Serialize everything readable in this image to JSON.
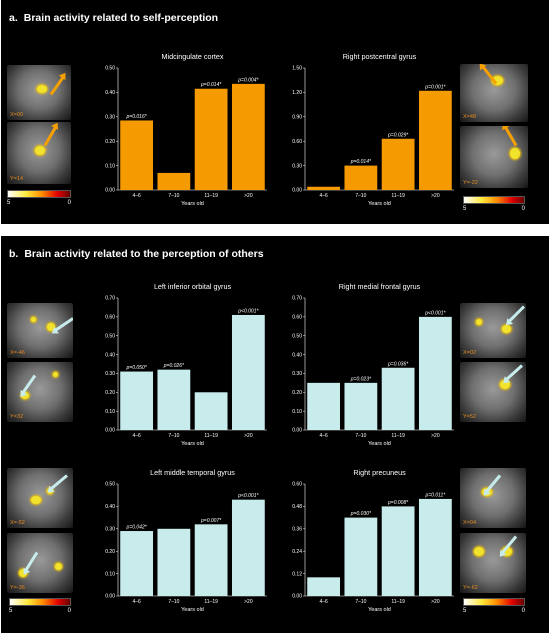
{
  "section_a": {
    "letter": "a.",
    "title": "Brain activity related to self-perception"
  },
  "section_b": {
    "letter": "b.",
    "title": "Brain activity related to the perception of others"
  },
  "colorscale": {
    "min": "5",
    "max": "0"
  },
  "colors": {
    "self": "#f59a00",
    "others": "#c8ecec",
    "background": "#000000"
  },
  "brains": {
    "a_left_sag": "X=00",
    "a_left_cor": "Y=14",
    "a_right_sag": "X=48",
    "a_right_cor": "Y=-22",
    "b_l1_sag": "X=-46",
    "b_l1_cor": "Y=32",
    "b_r1_sag": "X=02",
    "b_r1_cor": "Y=52",
    "b_l2_sag": "X=-52",
    "b_l2_cor": "Y=-36",
    "b_r2_sag": "X=04",
    "b_r2_cor": "Y=-62"
  },
  "chart_data": [
    {
      "type": "bar",
      "title": "Midcingulate cortex",
      "xlabel": "Years old",
      "categories": [
        "4–6",
        "7–10",
        "11–19",
        ">20"
      ],
      "values": [
        0.285,
        0.07,
        0.415,
        0.435
      ],
      "p_labels": [
        "p=0.016*",
        "",
        "p=0.014*",
        "p=0.004*"
      ],
      "ylim": [
        0,
        0.5
      ],
      "yticks": [
        "0.00",
        "0.10",
        "0.20",
        "0.30",
        "0.40",
        "0.50"
      ],
      "color": "#f59a00"
    },
    {
      "type": "bar",
      "title": "Right postcentral gyrus",
      "xlabel": "Years old",
      "categories": [
        "4–6",
        "7–10",
        "11–19",
        ">20"
      ],
      "values": [
        0.04,
        0.3,
        0.63,
        1.22
      ],
      "p_labels": [
        "",
        "p=0.014*",
        "p=0.029*",
        "p=0.001*"
      ],
      "ylim": [
        0,
        1.5
      ],
      "yticks": [
        "0.00",
        "0.30",
        "0.60",
        "0.90",
        "1.20",
        "1.50"
      ],
      "color": "#f59a00"
    },
    {
      "type": "bar",
      "title": "Left inferior orbital gyrus",
      "xlabel": "Years old",
      "categories": [
        "4–6",
        "7–10",
        "11–19",
        ">20"
      ],
      "values": [
        0.31,
        0.32,
        0.2,
        0.61
      ],
      "p_labels": [
        "p=0.050*",
        "p=0.026*",
        "",
        "p<0.001*"
      ],
      "ylim": [
        0,
        0.7
      ],
      "yticks": [
        "0.00",
        "0.10",
        "0.20",
        "0.30",
        "0.40",
        "0.50",
        "0.60",
        "0.70"
      ],
      "color": "#c8ecec"
    },
    {
      "type": "bar",
      "title": "Right medial frontal gyrus",
      "xlabel": "Years old",
      "categories": [
        "4–6",
        "7–10",
        "11–19",
        ">20"
      ],
      "values": [
        0.25,
        0.25,
        0.33,
        0.6
      ],
      "p_labels": [
        "",
        "p=0.023*",
        "p=0.036*",
        "p<0.001*"
      ],
      "ylim": [
        0,
        0.7
      ],
      "yticks": [
        "0.00",
        "0.10",
        "0.20",
        "0.30",
        "0.40",
        "0.50",
        "0.60",
        "0.70"
      ],
      "color": "#c8ecec"
    },
    {
      "type": "bar",
      "title": "Left middle temporal gyrus",
      "xlabel": "Years old",
      "categories": [
        "4–6",
        "7–10",
        "11–19",
        ">20"
      ],
      "values": [
        0.29,
        0.3,
        0.32,
        0.43
      ],
      "p_labels": [
        "p=0.042*",
        "",
        "p=0.007*",
        "p<0.001*"
      ],
      "ylim": [
        0,
        0.5
      ],
      "yticks": [
        "0.00",
        "0.10",
        "0.20",
        "0.30",
        "0.40",
        "0.50"
      ],
      "color": "#c8ecec"
    },
    {
      "type": "bar",
      "title": "Right precuneus",
      "xlabel": "Years old",
      "categories": [
        "4–6",
        "7–10",
        "11–19",
        ">20"
      ],
      "values": [
        0.1,
        0.42,
        0.48,
        0.52
      ],
      "p_labels": [
        "",
        "p=0.030*",
        "p=0.008*",
        "p=0.011*"
      ],
      "ylim": [
        0,
        0.6
      ],
      "yticks": [
        "0.00",
        "0.12",
        "0.24",
        "0.36",
        "0.48",
        "0.60"
      ],
      "color": "#c8ecec"
    }
  ]
}
